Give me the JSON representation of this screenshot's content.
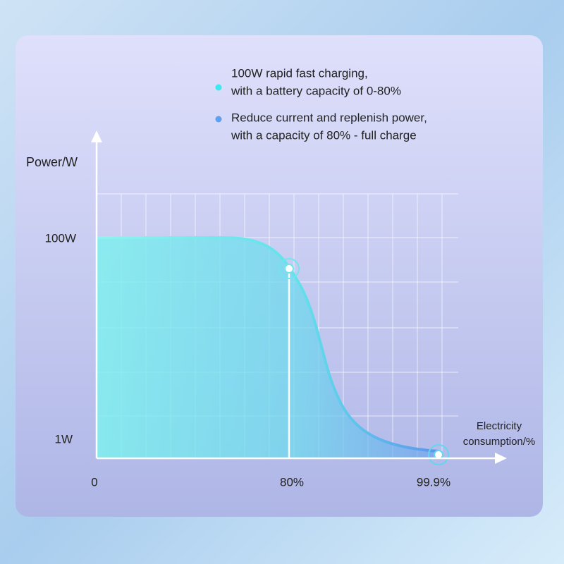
{
  "legend": [
    {
      "lines": [
        "100W rapid fast charging,",
        "with a battery capacity of 0-80%"
      ]
    },
    {
      "lines": [
        "Reduce current and replenish power,",
        "with a capacity of 80% - full charge"
      ]
    }
  ],
  "y_axis": {
    "title": "Power/W",
    "labels": [
      "100W",
      "1W"
    ]
  },
  "x_axis": {
    "title": [
      "Electricity",
      "consumption/%"
    ],
    "labels": [
      "0",
      "80%",
      "99.9%"
    ]
  }
}
